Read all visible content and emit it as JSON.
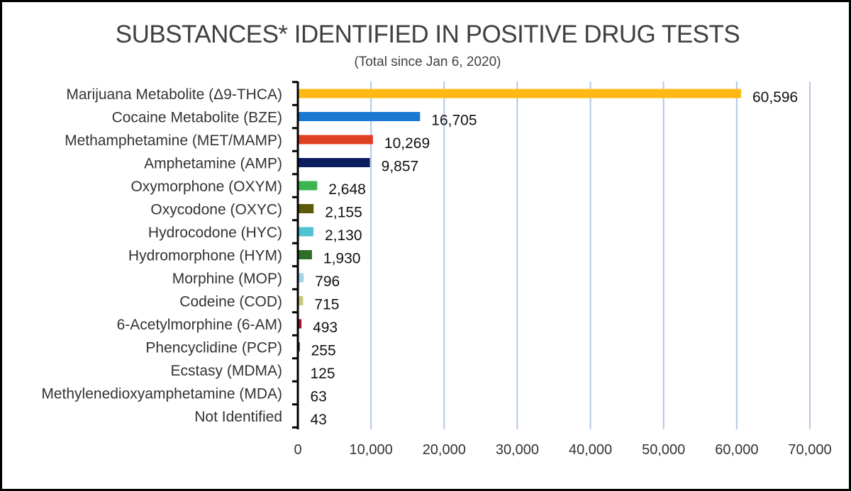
{
  "chart_data": {
    "type": "bar",
    "orientation": "horizontal",
    "title": "SUBSTANCES* IDENTIFIED IN POSITIVE DRUG TESTS",
    "subtitle": "(Total since Jan 6, 2020)",
    "categories": [
      "Marijuana Metabolite (Δ9-THCA)",
      "Cocaine Metabolite (BZE)",
      "Methamphetamine (MET/MAMP)",
      "Amphetamine (AMP)",
      "Oxymorphone (OXYM)",
      "Oxycodone (OXYC)",
      "Hydrocodone (HYC)",
      "Hydromorphone (HYM)",
      "Morphine (MOP)",
      "Codeine (COD)",
      "6-Acetylmorphine (6-AM)",
      "Phencyclidine (PCP)",
      "Ecstasy (MDMA)",
      "Methylenedioxyamphetamine (MDA)",
      "Not Identified"
    ],
    "values": [
      60596,
      16705,
      10269,
      9857,
      2648,
      2155,
      2130,
      1930,
      796,
      715,
      493,
      255,
      125,
      63,
      43
    ],
    "value_labels": [
      "60,596",
      "16,705",
      "10,269",
      "9,857",
      "2,648",
      "2,155",
      "2,130",
      "1,930",
      "796",
      "715",
      "493",
      "255",
      "125",
      "63",
      "43"
    ],
    "colors": [
      "#FFB914",
      "#1878D2",
      "#E14123",
      "#0A1E5F",
      "#3CB450",
      "#5A5A0A",
      "#50C3D2",
      "#2D6E28",
      "#A5D2E6",
      "#C8C878",
      "#A01428",
      "#1E1E1E",
      "#3C0A1E",
      "#0A2846",
      "#141414"
    ],
    "xlim": [
      0,
      70000
    ],
    "x_ticks": [
      0,
      10000,
      20000,
      30000,
      40000,
      50000,
      60000,
      70000
    ],
    "x_tick_labels": [
      "0",
      "10,000",
      "20,000",
      "30,000",
      "40,000",
      "50,000",
      "60,000",
      "70,000"
    ],
    "xlabel": "",
    "ylabel": "",
    "grid": "vertical",
    "grid_color": "#B4C8E6",
    "legend": "none"
  }
}
